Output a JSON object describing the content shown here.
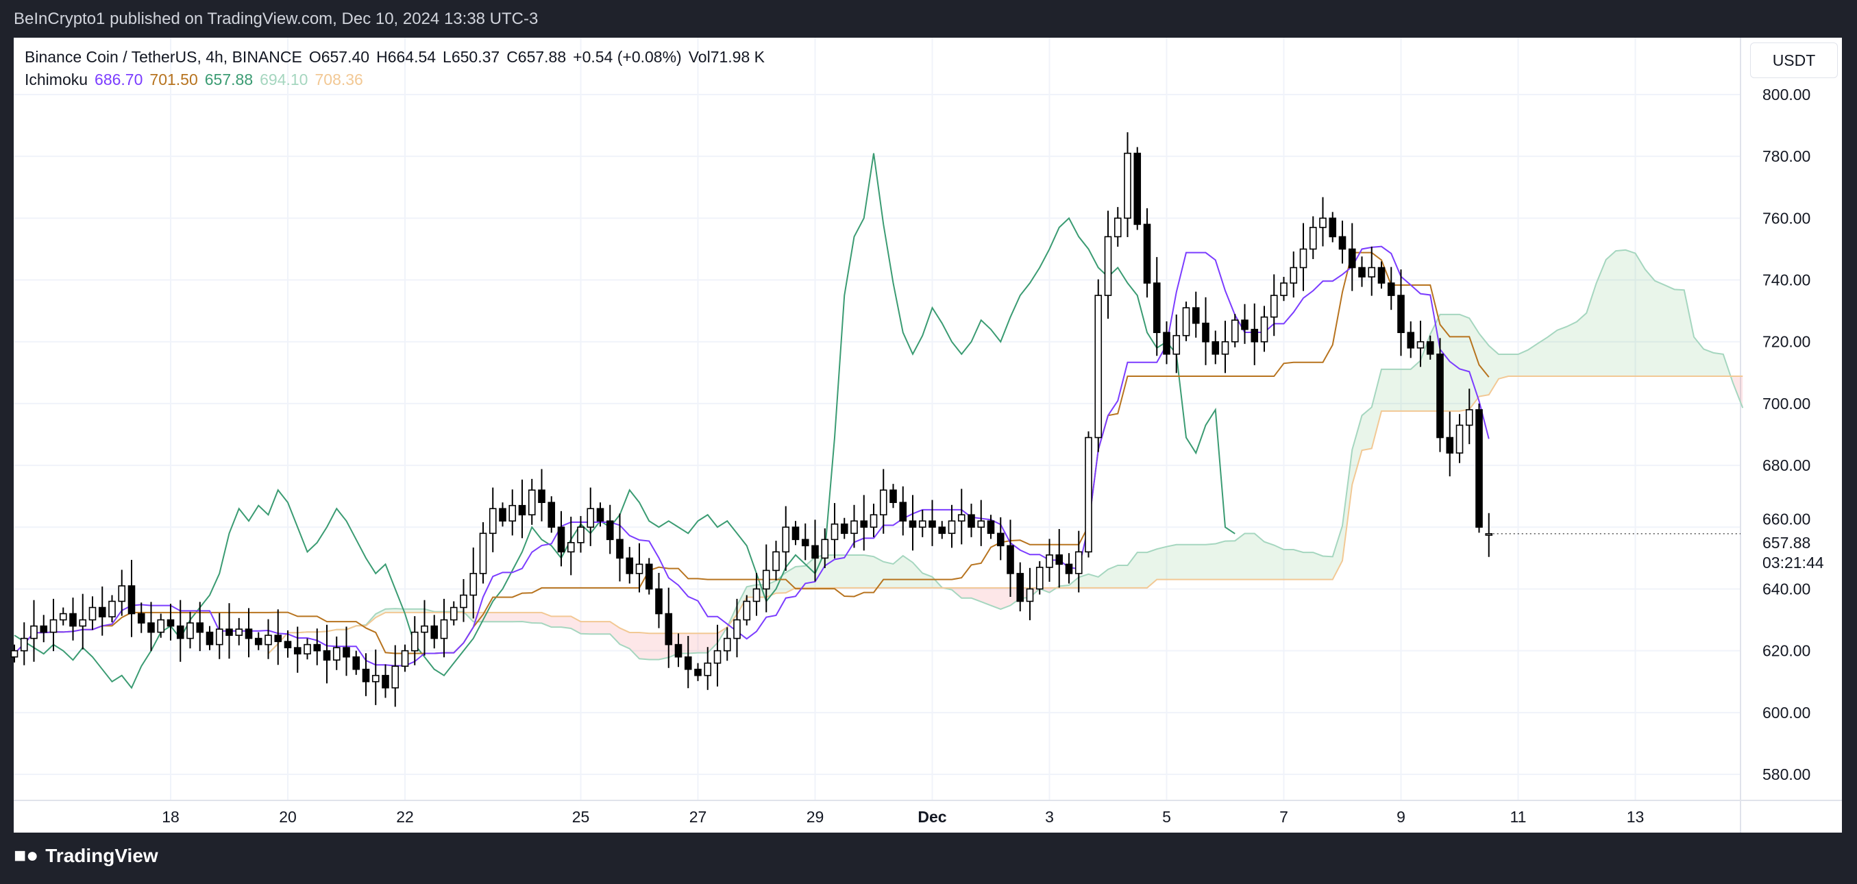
{
  "header": {
    "published": "BeInCrypto1 published on TradingView.com, Dec 10, 2024 13:38 UTC-3"
  },
  "legend": {
    "symbol": "Binance Coin / TetherUS, 4h, BINANCE",
    "open": "O657.40",
    "high": "H664.54",
    "low": "L650.37",
    "close": "C657.88",
    "change": "+0.54 (+0.08%)",
    "volume": "Vol71.98 K",
    "indicator": "Ichimoku",
    "values": [
      {
        "text": "686.70",
        "color": "#7b3cff"
      },
      {
        "text": "701.50",
        "color": "#b7731e"
      },
      {
        "text": "657.88",
        "color": "#3a9b72"
      },
      {
        "text": "694.10",
        "color": "#a5d6bf"
      },
      {
        "text": "708.36",
        "color": "#f2c894"
      }
    ]
  },
  "currency_button": "USDT",
  "footer": {
    "logo": "TradingView"
  },
  "chart_data": {
    "type": "candlestick",
    "interval": "4h",
    "ylim": [
      570,
      810
    ],
    "y_ticks": [
      "800.00",
      "780.00",
      "760.00",
      "740.00",
      "720.00",
      "700.00",
      "680.00",
      "660.00",
      "640.00",
      "620.00",
      "600.00",
      "580.00"
    ],
    "x_ticks": [
      {
        "label": "18",
        "day": 18
      },
      {
        "label": "20",
        "day": 20
      },
      {
        "label": "22",
        "day": 22
      },
      {
        "label": "25",
        "day": 25
      },
      {
        "label": "27",
        "day": 27
      },
      {
        "label": "29",
        "day": 29
      },
      {
        "label": "Dec",
        "day": 31,
        "bold": true
      },
      {
        "label": "3",
        "day": 33
      },
      {
        "label": "5",
        "day": 35
      },
      {
        "label": "7",
        "day": 37
      },
      {
        "label": "9",
        "day": 39
      },
      {
        "label": "11",
        "day": 41
      },
      {
        "label": "13",
        "day": 43
      }
    ],
    "last_price": "657.88",
    "countdown": "03:21:44",
    "closes": [
      620,
      624,
      628,
      626,
      630,
      632,
      628,
      630,
      634,
      631,
      636,
      641,
      632,
      629,
      626,
      630,
      628,
      624,
      629,
      626,
      622,
      627,
      625,
      627,
      624,
      622,
      625,
      623,
      621,
      619,
      622,
      620,
      617,
      621,
      618,
      614,
      610,
      612,
      608,
      615,
      620,
      626,
      628,
      624,
      630,
      634,
      638,
      645,
      658,
      666,
      662,
      667,
      664,
      672,
      668,
      660,
      652,
      655,
      660,
      666,
      662,
      656,
      650,
      645,
      648,
      640,
      632,
      622,
      618,
      614,
      612,
      616,
      620,
      624,
      630,
      636,
      640,
      646,
      652,
      660,
      656,
      654,
      650,
      656,
      661,
      658,
      662,
      660,
      664,
      672,
      668,
      662,
      660,
      662,
      660,
      658,
      662,
      664,
      660,
      662,
      658,
      654,
      645,
      636,
      640,
      647,
      651,
      648,
      645,
      652,
      689,
      735,
      754,
      760,
      781,
      758,
      739,
      723,
      716,
      722,
      731,
      726,
      720,
      716,
      720,
      727,
      724,
      720,
      728,
      735,
      739,
      744,
      750,
      757,
      760,
      754,
      750,
      744,
      741,
      744,
      739,
      735,
      723,
      718,
      720,
      716,
      689,
      684,
      693,
      698,
      660,
      657.88
    ],
    "ichimoku": {
      "conversion_color": "#7b3cff",
      "base_color": "#b7731e",
      "lagging_color": "#3a9b72",
      "spanA_color": "#a5d6bf",
      "spanB_color": "#f2c894",
      "cloud_up": "rgba(76,175,80,0.12)",
      "cloud_down": "rgba(242,54,69,0.12)"
    },
    "up_color": "#ffffff",
    "down_color": "#000000"
  }
}
